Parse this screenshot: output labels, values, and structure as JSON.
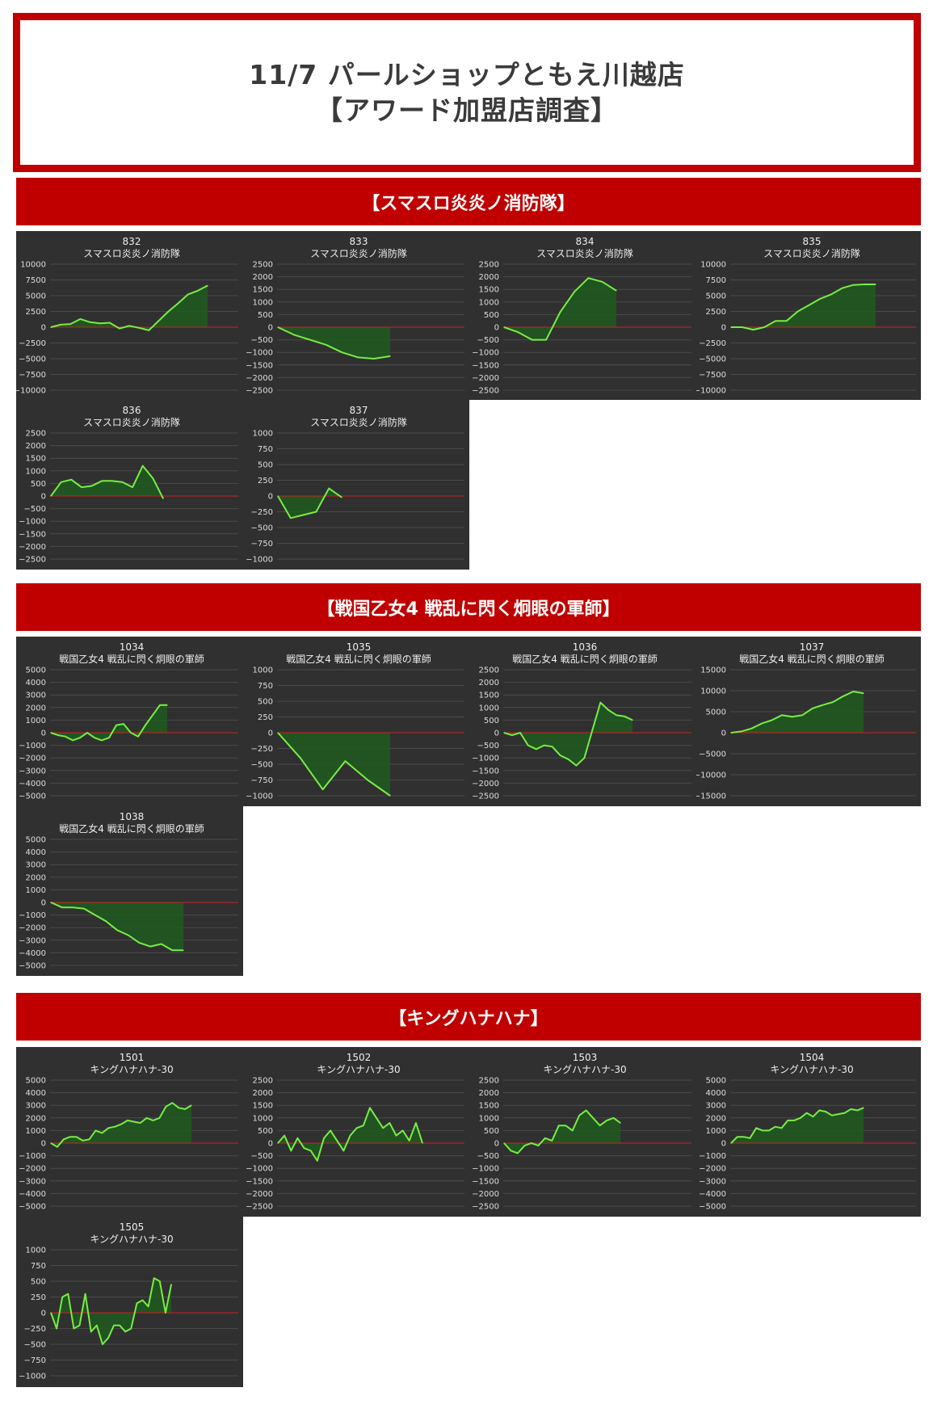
{
  "header": {
    "line1": "11/7 パールショップともえ川越店",
    "line2": "【アワード加盟店調査】",
    "border_color": "#c00000"
  },
  "colors": {
    "section_bar": "#c00000",
    "panel_bg": "#303030",
    "line": "#77ee44",
    "fill": "#1f5a1f",
    "zero_line": "#cc2222",
    "grid": "#4a4a4a"
  },
  "sections": [
    {
      "label": "【スマスロ炎炎ノ消防隊】"
    },
    {
      "label": "【戦国乙女4 戦乱に閃く炯眼の軍師】"
    },
    {
      "label": "【キングハナハナ】"
    }
  ],
  "chart_data": [
    {
      "type": "area",
      "id": "832",
      "title": "スマスロ炎炎ノ消防隊",
      "ylim": [
        -10000,
        10000
      ],
      "yticks": [
        10000,
        7500,
        5000,
        2500,
        0,
        -2500,
        -5000,
        -7500,
        -10000
      ],
      "values": [
        0,
        400,
        500,
        1300,
        800,
        600,
        700,
        -200,
        200,
        -100,
        -500,
        1000,
        2500,
        3800,
        5200,
        5800,
        6600
      ]
    },
    {
      "type": "area",
      "id": "833",
      "title": "スマスロ炎炎ノ消防隊",
      "ylim": [
        -2500,
        2500
      ],
      "yticks": [
        2500,
        2000,
        1500,
        1000,
        500,
        0,
        -500,
        -1000,
        -1500,
        -2000,
        -2500
      ],
      "values": [
        0,
        -300,
        -500,
        -700,
        -1000,
        -1200,
        -1250,
        -1150
      ]
    },
    {
      "type": "area",
      "id": "834",
      "title": "スマスロ炎炎ノ消防隊",
      "ylim": [
        -2500,
        2500
      ],
      "yticks": [
        2500,
        2000,
        1500,
        1000,
        500,
        0,
        -500,
        -1000,
        -1500,
        -2000,
        -2500
      ],
      "values": [
        0,
        -200,
        -500,
        -500,
        600,
        1400,
        1950,
        1800,
        1450
      ]
    },
    {
      "type": "area",
      "id": "835",
      "title": "スマスロ炎炎ノ消防隊",
      "ylim": [
        -10000,
        10000
      ],
      "yticks": [
        10000,
        7500,
        5000,
        2500,
        0,
        -2500,
        -5000,
        -7500,
        -10000
      ],
      "values": [
        0,
        0,
        -400,
        0,
        1000,
        1000,
        2500,
        3500,
        4500,
        5200,
        6200,
        6700,
        6800,
        6800
      ]
    },
    {
      "type": "area",
      "id": "836",
      "title": "スマスロ炎炎ノ消防隊",
      "ylim": [
        -2500,
        2500
      ],
      "yticks": [
        2500,
        2000,
        1500,
        1000,
        500,
        0,
        -500,
        -1000,
        -1500,
        -2000,
        -2500
      ],
      "values": [
        0,
        550,
        650,
        350,
        400,
        600,
        600,
        550,
        350,
        1200,
        700,
        -100
      ]
    },
    {
      "type": "area",
      "id": "837",
      "title": "スマスロ炎炎ノ消防隊",
      "ylim": [
        -1000,
        1000
      ],
      "yticks": [
        1000,
        750,
        500,
        250,
        0,
        -250,
        -500,
        -750,
        -1000
      ],
      "values": [
        0,
        -350,
        -300,
        -250,
        120,
        -20
      ]
    },
    {
      "type": "area",
      "id": "1034",
      "title": "戦国乙女4 戦乱に閃く炯眼の軍師",
      "ylim": [
        -5000,
        5000
      ],
      "yticks": [
        5000,
        4000,
        3000,
        2000,
        1000,
        0,
        -1000,
        -2000,
        -3000,
        -4000,
        -5000
      ],
      "values": [
        0,
        -200,
        -300,
        -600,
        -400,
        0,
        -400,
        -600,
        -400,
        600,
        700,
        0,
        -300,
        600,
        1400,
        2200,
        2200
      ]
    },
    {
      "type": "area",
      "id": "1035",
      "title": "戦国乙女4 戦乱に閃く炯眼の軍師",
      "ylim": [
        -1000,
        1000
      ],
      "yticks": [
        1000,
        750,
        500,
        250,
        0,
        -250,
        -500,
        -750,
        -1000
      ],
      "values": [
        0,
        -400,
        -900,
        -450,
        -750,
        -1000
      ]
    },
    {
      "type": "area",
      "id": "1036",
      "title": "戦国乙女4 戦乱に閃く炯眼の軍師",
      "ylim": [
        -2500,
        2500
      ],
      "yticks": [
        2500,
        2000,
        1500,
        1000,
        500,
        0,
        -500,
        -1000,
        -1500,
        -2000,
        -2500
      ],
      "values": [
        0,
        -100,
        0,
        -500,
        -650,
        -500,
        -550,
        -900,
        -1050,
        -1300,
        -1000,
        100,
        1200,
        900,
        700,
        650,
        500
      ]
    },
    {
      "type": "area",
      "id": "1037",
      "title": "戦国乙女4 戦乱に閃く炯眼の軍師",
      "ylim": [
        -15000,
        15000
      ],
      "yticks": [
        15000,
        10000,
        5000,
        0,
        -5000,
        -10000,
        -15000
      ],
      "values": [
        0,
        300,
        1000,
        2200,
        3000,
        4200,
        3800,
        4200,
        5800,
        6600,
        7300,
        8700,
        9800,
        9400
      ]
    },
    {
      "type": "area",
      "id": "1038",
      "title": "戦国乙女4 戦乱に閃く炯眼の軍師",
      "ylim": [
        -5000,
        5000
      ],
      "yticks": [
        5000,
        4000,
        3000,
        2000,
        1000,
        0,
        -1000,
        -2000,
        -3000,
        -4000,
        -5000
      ],
      "values": [
        0,
        -400,
        -400,
        -500,
        -1000,
        -1500,
        -2200,
        -2600,
        -3200,
        -3500,
        -3300,
        -3800,
        -3800
      ]
    },
    {
      "type": "area",
      "id": "1501",
      "title": "キングハナハナ-30",
      "ylim": [
        -5000,
        5000
      ],
      "yticks": [
        5000,
        4000,
        3000,
        2000,
        1000,
        0,
        -1000,
        -2000,
        -3000,
        -4000,
        -5000
      ],
      "values": [
        0,
        -300,
        300,
        500,
        500,
        200,
        300,
        1000,
        800,
        1200,
        1300,
        1500,
        1800,
        1700,
        1600,
        2000,
        1800,
        2000,
        2900,
        3200,
        2800,
        2700,
        3000
      ]
    },
    {
      "type": "area",
      "id": "1502",
      "title": "キングハナハナ-30",
      "ylim": [
        -2500,
        2500
      ],
      "yticks": [
        2500,
        2000,
        1500,
        1000,
        500,
        0,
        -500,
        -1000,
        -1500,
        -2000,
        -2500
      ],
      "values": [
        0,
        300,
        -300,
        200,
        -200,
        -300,
        -700,
        200,
        500,
        100,
        -300,
        300,
        600,
        700,
        1400,
        1000,
        600,
        800,
        300,
        500,
        100,
        800,
        0
      ]
    },
    {
      "type": "area",
      "id": "1503",
      "title": "キングハナハナ-30",
      "ylim": [
        -2500,
        2500
      ],
      "yticks": [
        2500,
        2000,
        1500,
        1000,
        500,
        0,
        -500,
        -1000,
        -1500,
        -2000,
        -2500
      ],
      "values": [
        0,
        -300,
        -400,
        -100,
        0,
        -100,
        200,
        100,
        700,
        700,
        500,
        1100,
        1300,
        1000,
        700,
        900,
        1000,
        800
      ]
    },
    {
      "type": "area",
      "id": "1504",
      "title": "キングハナハナ-30",
      "ylim": [
        -5000,
        5000
      ],
      "yticks": [
        5000,
        4000,
        3000,
        2000,
        1000,
        0,
        -1000,
        -2000,
        -3000,
        -4000,
        -5000
      ],
      "values": [
        0,
        500,
        500,
        400,
        1200,
        1000,
        1000,
        1300,
        1200,
        1800,
        1800,
        2000,
        2400,
        2100,
        2600,
        2500,
        2200,
        2300,
        2400,
        2700,
        2600,
        2800
      ]
    },
    {
      "type": "area",
      "id": "1505",
      "title": "キングハナハナ-30",
      "ylim": [
        -1000,
        1000
      ],
      "yticks": [
        1000,
        750,
        500,
        250,
        0,
        -250,
        -500,
        -750,
        -1000
      ],
      "values": [
        0,
        -250,
        250,
        300,
        -250,
        -200,
        300,
        -300,
        -200,
        -500,
        -400,
        -200,
        -200,
        -300,
        -250,
        150,
        200,
        100,
        550,
        500,
        0,
        450
      ]
    }
  ]
}
